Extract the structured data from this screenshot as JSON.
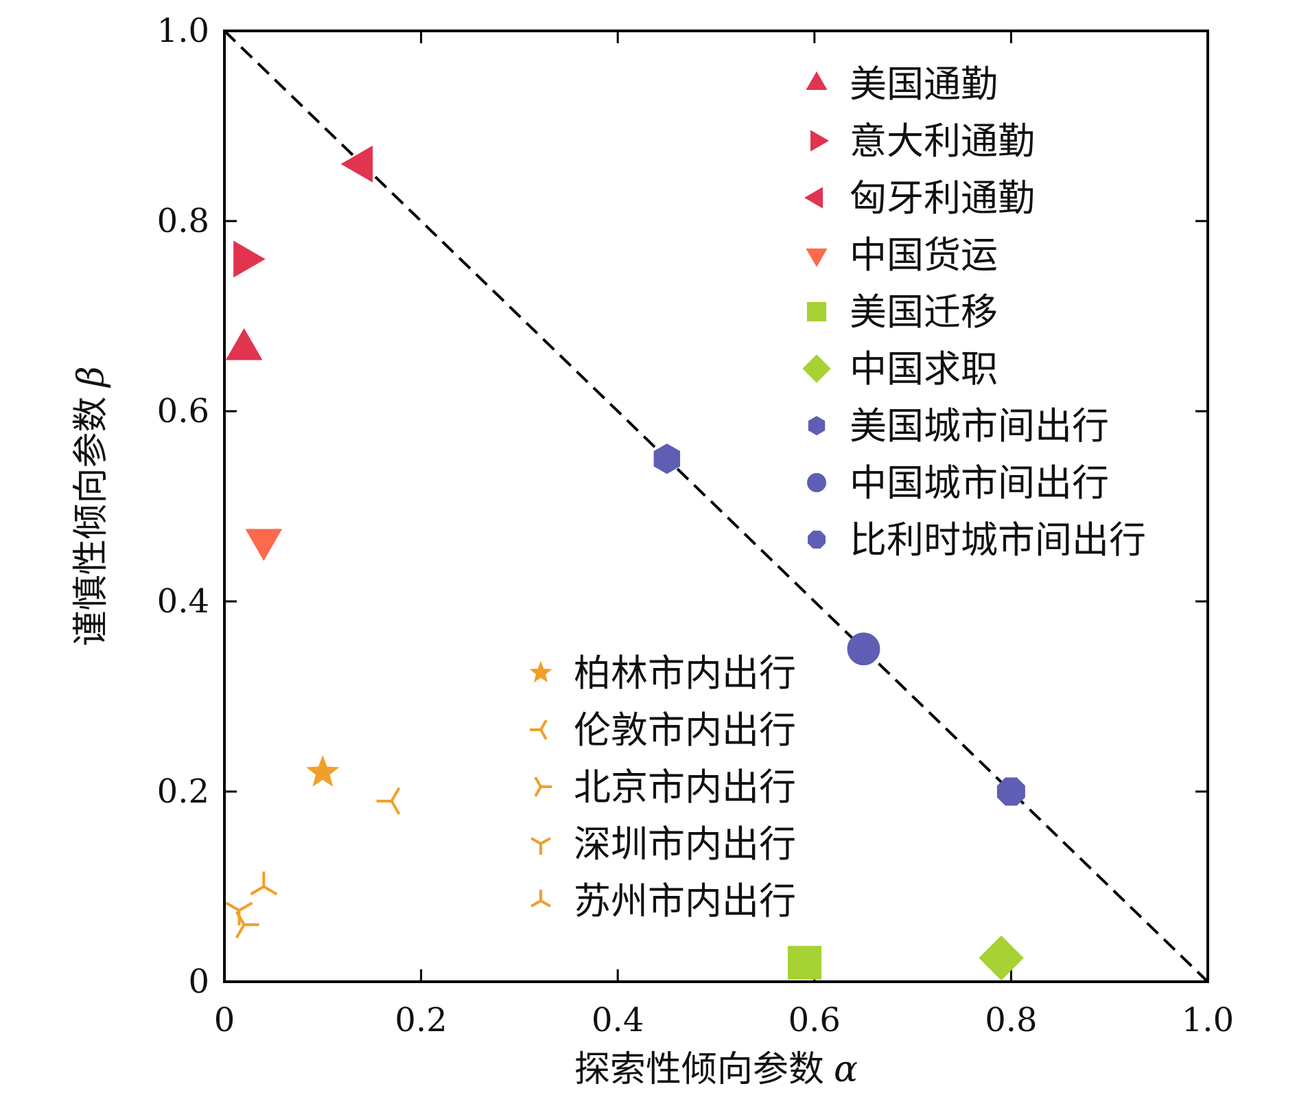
{
  "colors": {
    "red": "#e0344f",
    "orange_red": "#fb6a4a",
    "lime": "#a6d234",
    "blue": "#5e5eb4",
    "orange": "#f0a029",
    "axis": "#000000"
  },
  "chart_data": {
    "type": "scatter",
    "xlabel": "探索性倾向参数",
    "xlabel_symbol": "α",
    "ylabel": "谨慎性倾向参数",
    "ylabel_symbol": "β",
    "xlim": [
      0,
      1
    ],
    "ylim": [
      0,
      1
    ],
    "x_ticks": [
      "0",
      "0.2",
      "0.4",
      "0.6",
      "0.8",
      "1.0"
    ],
    "y_ticks": [
      "0",
      "0.2",
      "0.4",
      "0.6",
      "0.8",
      "1.0"
    ],
    "reference_line": {
      "style": "dashed",
      "from": [
        0,
        1
      ],
      "to": [
        1,
        0
      ]
    },
    "grid": false,
    "series": [
      {
        "name": "美国通勤",
        "marker": "triangle-up",
        "color": "#e0344f",
        "points": [
          [
            0.02,
            0.665
          ]
        ]
      },
      {
        "name": "意大利通勤",
        "marker": "triangle-right",
        "color": "#e0344f",
        "points": [
          [
            0.02,
            0.76
          ]
        ]
      },
      {
        "name": "匈牙利通勤",
        "marker": "triangle-left",
        "color": "#e0344f",
        "points": [
          [
            0.14,
            0.86
          ]
        ]
      },
      {
        "name": "中国货运",
        "marker": "triangle-down",
        "color": "#fb6a4a",
        "points": [
          [
            0.04,
            0.465
          ]
        ]
      },
      {
        "name": "美国迁移",
        "marker": "square",
        "color": "#a6d234",
        "points": [
          [
            0.59,
            0.02
          ]
        ]
      },
      {
        "name": "中国求职",
        "marker": "diamond",
        "color": "#a6d234",
        "points": [
          [
            0.79,
            0.025
          ]
        ]
      },
      {
        "name": "美国城市间出行",
        "marker": "hexagon",
        "color": "#5e5eb4",
        "points": [
          [
            0.45,
            0.55
          ]
        ]
      },
      {
        "name": "中国城市间出行",
        "marker": "circle",
        "color": "#5e5eb4",
        "points": [
          [
            0.65,
            0.35
          ]
        ]
      },
      {
        "name": "比利时城市间出行",
        "marker": "octagon",
        "color": "#5e5eb4",
        "points": [
          [
            0.8,
            0.2
          ]
        ]
      },
      {
        "name": "柏林市内出行",
        "marker": "star",
        "color": "#f0a029",
        "points": [
          [
            0.1,
            0.22
          ]
        ]
      },
      {
        "name": "伦敦市内出行",
        "marker": "tri-right",
        "color": "#f0a029",
        "points": [
          [
            0.17,
            0.19
          ]
        ]
      },
      {
        "name": "北京市内出行",
        "marker": "tri-left",
        "color": "#f0a029",
        "points": [
          [
            0.02,
            0.06
          ]
        ]
      },
      {
        "name": "深圳市内出行",
        "marker": "tri-up",
        "color": "#f0a029",
        "points": [
          [
            0.015,
            0.075
          ]
        ]
      },
      {
        "name": "苏州市内出行",
        "marker": "tri-down",
        "color": "#f0a029",
        "points": [
          [
            0.04,
            0.1
          ]
        ]
      }
    ],
    "legend": [
      {
        "placement": "top-right",
        "entries": [
          0,
          1,
          2,
          3,
          4,
          5,
          6,
          7,
          8
        ]
      },
      {
        "placement": "lower-middle",
        "entries": [
          9,
          10,
          11,
          12,
          13
        ]
      }
    ]
  }
}
